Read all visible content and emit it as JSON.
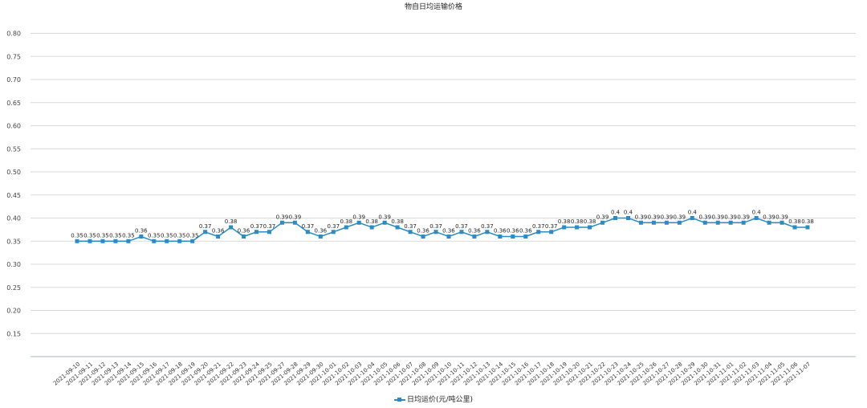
{
  "chart_data": {
    "type": "line",
    "title": "物自日均运输价格",
    "xlabel": "",
    "ylabel": "",
    "ylim": [
      0.1,
      0.8
    ],
    "yticks": [
      0.15,
      0.2,
      0.25,
      0.3,
      0.35,
      0.4,
      0.45,
      0.5,
      0.55,
      0.6,
      0.65,
      0.7,
      0.75,
      0.8
    ],
    "legend": "bottom",
    "grid": true,
    "series_color": "#2a8bc5",
    "categories": [
      "2021-09-10",
      "2021-09-11",
      "2021-09-12",
      "2021-09-13",
      "2021-09-14",
      "2021-09-15",
      "2021-09-16",
      "2021-09-17",
      "2021-09-18",
      "2021-09-19",
      "2021-09-20",
      "2021-09-21",
      "2021-09-22",
      "2021-09-23",
      "2021-09-24",
      "2021-09-25",
      "2021-09-27",
      "2021-09-28",
      "2021-09-29",
      "2021-09-30",
      "2021-10-01",
      "2021-10-02",
      "2021-10-03",
      "2021-10-04",
      "2021-10-05",
      "2021-10-06",
      "2021-10-07",
      "2021-10-08",
      "2021-10-09",
      "2021-10-10",
      "2021-10-11",
      "2021-10-12",
      "2021-10-13",
      "2021-10-14",
      "2021-10-15",
      "2021-10-16",
      "2021-10-17",
      "2021-10-18",
      "2021-10-19",
      "2021-10-20",
      "2021-10-21",
      "2021-10-22",
      "2021-10-23",
      "2021-10-24",
      "2021-10-25",
      "2021-10-26",
      "2021-10-27",
      "2021-10-28",
      "2021-10-29",
      "2021-10-30",
      "2021-10-31",
      "2021-11-01",
      "2021-11-02",
      "2021-11-03",
      "2021-11-04",
      "2021-11-05",
      "2021-11-06",
      "2021-11-07"
    ],
    "series": [
      {
        "name": "日均运价(元/吨公里)",
        "values": [
          0.35,
          0.35,
          0.35,
          0.35,
          0.35,
          0.36,
          0.35,
          0.35,
          0.35,
          0.35,
          0.37,
          0.36,
          0.38,
          0.36,
          0.37,
          0.37,
          0.39,
          0.39,
          0.37,
          0.36,
          0.37,
          0.38,
          0.39,
          0.38,
          0.39,
          0.38,
          0.37,
          0.36,
          0.37,
          0.36,
          0.37,
          0.36,
          0.37,
          0.36,
          0.36,
          0.36,
          0.37,
          0.37,
          0.38,
          0.38,
          0.38,
          0.39,
          0.4,
          0.4,
          0.39,
          0.39,
          0.39,
          0.39,
          0.4,
          0.39,
          0.39,
          0.39,
          0.39,
          0.4,
          0.39,
          0.39,
          0.38,
          0.38
        ],
        "labels": [
          "0.35",
          "0.35",
          "0.35",
          "0.35",
          "0.35",
          "0.36",
          "0.35",
          "0.35",
          "0.35",
          "0.35",
          "0.37",
          "0.36",
          "0.38",
          "0.36",
          "0.37",
          "0.37",
          "0.39",
          "0.39",
          "0.37",
          "0.36",
          "0.37",
          "0.38",
          "0.39",
          "0.38",
          "0.39",
          "0.38",
          "0.37",
          "0.36",
          "0.37",
          "0.36",
          "0.37",
          "0.36",
          "0.37",
          "0.36",
          "0.36",
          "0.36",
          "0.37",
          "0.37",
          "0.38",
          "0.38",
          "0.38",
          "0.39",
          "0.4",
          "0.4",
          "0.39",
          "0.39",
          "0.39",
          "0.39",
          "0.4",
          "0.39",
          "0.39",
          "0.39",
          "0.39",
          "0.4",
          "0.39",
          "0.39",
          "0.38",
          "0.38"
        ]
      }
    ]
  }
}
